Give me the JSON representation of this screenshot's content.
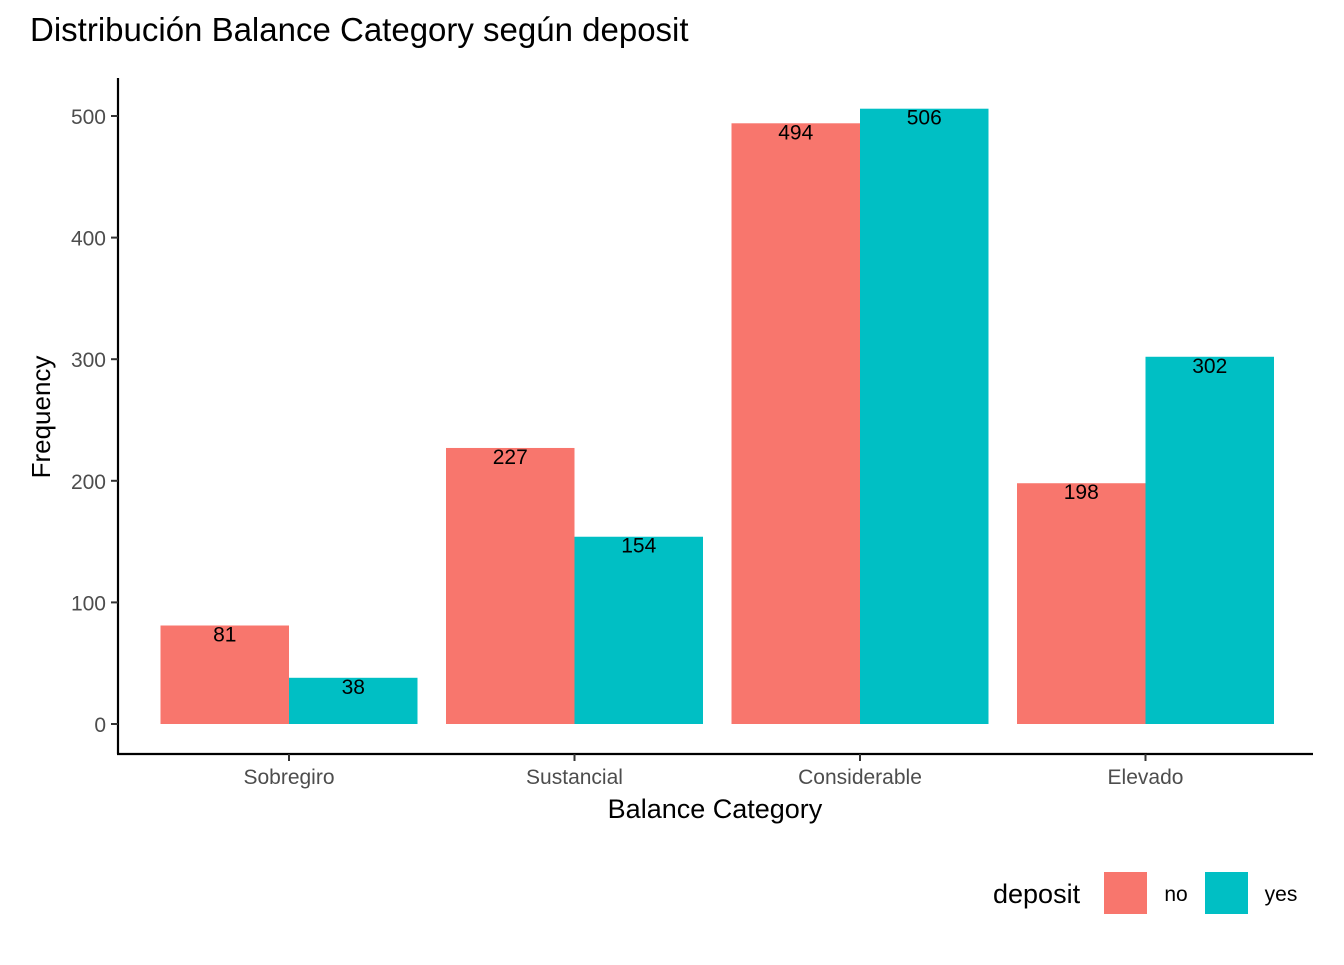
{
  "chart_data": {
    "type": "bar",
    "title": "Distribución Balance Category según deposit",
    "xlabel": "Balance Category",
    "ylabel": "Frequency",
    "categories": [
      "Sobregiro",
      "Sustancial",
      "Considerable",
      "Elevado"
    ],
    "series": [
      {
        "name": "no",
        "color": "#F8766D",
        "values": [
          81,
          227,
          494,
          198
        ]
      },
      {
        "name": "yes",
        "color": "#00BFC4",
        "values": [
          38,
          154,
          506,
          302
        ]
      }
    ],
    "yticks": [
      0,
      100,
      200,
      300,
      400,
      500
    ],
    "ylim": [
      -25,
      530
    ],
    "grid": false,
    "data_labels": true,
    "legend": {
      "title": "deposit",
      "position": "bottom-right"
    }
  }
}
